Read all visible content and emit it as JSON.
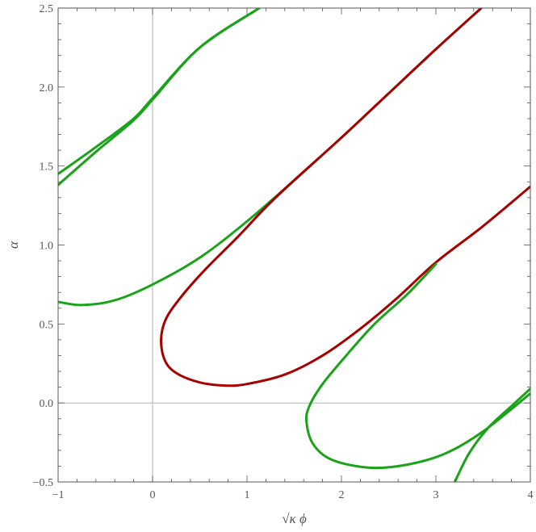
{
  "chart_data": {
    "type": "line",
    "xlabel": "√κ ϕ",
    "ylabel": "α",
    "xlim": [
      -1,
      4
    ],
    "ylim": [
      -0.5,
      2.5
    ],
    "x_ticks": [
      -1,
      0,
      1,
      2,
      3,
      4
    ],
    "x_tick_labels": [
      "−1",
      "0",
      "1",
      "2",
      "3",
      "4"
    ],
    "y_ticks": [
      -0.5,
      0.0,
      0.5,
      1.0,
      1.5,
      2.0,
      2.5
    ],
    "y_tick_labels": [
      "−0.5",
      "0.0",
      "0.5",
      "1.0",
      "1.5",
      "2.0",
      "2.5"
    ],
    "grid": false,
    "zero_lines": true,
    "colors": {
      "green": "#1aa31a",
      "red": "#a80000",
      "frame": "#555555",
      "zero": "#bbbbbb"
    },
    "series": [
      {
        "color": "#1aa31a",
        "points": [
          [
            -1.0,
            1.45
          ],
          [
            -0.6,
            1.62
          ],
          [
            -0.2,
            1.8
          ],
          [
            0.0,
            1.93
          ],
          [
            0.5,
            2.25
          ],
          [
            1.13,
            2.5
          ]
        ]
      },
      {
        "color": "#1aa31a",
        "points": [
          [
            -1.0,
            1.38
          ],
          [
            -0.6,
            1.59
          ],
          [
            -0.2,
            1.79
          ],
          [
            0.0,
            1.92
          ],
          [
            0.5,
            2.25
          ],
          [
            1.13,
            2.5
          ]
        ]
      },
      {
        "color": "#1aa31a",
        "points": [
          [
            -1.0,
            0.64
          ],
          [
            -0.75,
            0.62
          ],
          [
            -0.4,
            0.65
          ],
          [
            0.0,
            0.75
          ],
          [
            0.5,
            0.92
          ],
          [
            1.0,
            1.15
          ],
          [
            1.5,
            1.41
          ],
          [
            2.0,
            1.68
          ],
          [
            2.5,
            1.96
          ],
          [
            3.0,
            2.24
          ],
          [
            3.48,
            2.5
          ]
        ]
      },
      {
        "color": "#a80000",
        "points": [
          [
            3.48,
            2.5
          ],
          [
            3.0,
            2.24
          ],
          [
            2.5,
            1.96
          ],
          [
            2.0,
            1.68
          ],
          [
            1.5,
            1.41
          ],
          [
            1.2,
            1.24
          ],
          [
            0.9,
            1.05
          ],
          [
            0.55,
            0.84
          ],
          [
            0.3,
            0.67
          ],
          [
            0.14,
            0.53
          ],
          [
            0.09,
            0.4
          ],
          [
            0.13,
            0.27
          ],
          [
            0.25,
            0.19
          ],
          [
            0.5,
            0.13
          ],
          [
            0.77,
            0.11
          ],
          [
            1.0,
            0.12
          ],
          [
            1.4,
            0.18
          ],
          [
            1.8,
            0.3
          ],
          [
            2.2,
            0.47
          ],
          [
            2.6,
            0.67
          ],
          [
            3.0,
            0.89
          ],
          [
            3.5,
            1.12
          ],
          [
            4.0,
            1.37
          ]
        ]
      },
      {
        "color": "#1aa31a",
        "points": [
          [
            3.0,
            0.88
          ],
          [
            2.7,
            0.69
          ],
          [
            2.35,
            0.5
          ],
          [
            2.05,
            0.3
          ],
          [
            1.8,
            0.12
          ],
          [
            1.66,
            -0.02
          ],
          [
            1.63,
            -0.12
          ],
          [
            1.7,
            -0.26
          ],
          [
            1.9,
            -0.36
          ],
          [
            2.3,
            -0.41
          ],
          [
            2.7,
            -0.39
          ],
          [
            3.1,
            -0.32
          ],
          [
            3.5,
            -0.18
          ],
          [
            4.0,
            0.06
          ]
        ]
      },
      {
        "color": "#1aa31a",
        "points": [
          [
            3.2,
            -0.5
          ],
          [
            3.35,
            -0.32
          ],
          [
            3.55,
            -0.16
          ],
          [
            3.8,
            -0.02
          ],
          [
            4.0,
            0.09
          ]
        ]
      }
    ]
  }
}
